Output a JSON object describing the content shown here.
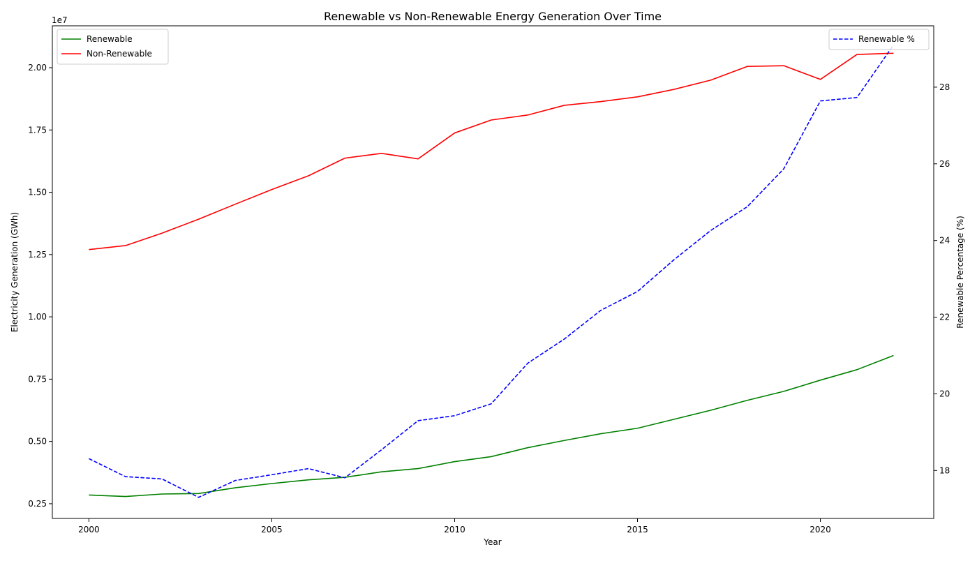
{
  "chart_data": {
    "type": "line",
    "title": "Renewable vs Non-Renewable Energy Generation Over Time",
    "xlabel": "Year",
    "ylabel_left": "Electricity Generation (GWh)",
    "ylabel_right": "Renewable Percentage (%)",
    "left_axis_offset_label": "1e7",
    "xlim": [
      1999,
      2023.1
    ],
    "ylim_left": [
      1910000,
      21680000
    ],
    "ylim_right": [
      16.75,
      29.6
    ],
    "x_ticks": [
      2000,
      2005,
      2010,
      2015,
      2020
    ],
    "x_tick_labels": [
      "2000",
      "2005",
      "2010",
      "2015",
      "2020"
    ],
    "left_ticks": [
      2500000,
      5000000,
      7500000,
      10000000,
      12500000,
      15000000,
      17500000,
      20000000
    ],
    "left_tick_labels": [
      "0.25",
      "0.50",
      "0.75",
      "1.00",
      "1.25",
      "1.50",
      "1.75",
      "2.00"
    ],
    "right_ticks": [
      18,
      20,
      22,
      24,
      26,
      28
    ],
    "right_tick_labels": [
      "18",
      "20",
      "22",
      "24",
      "26",
      "28"
    ],
    "x": [
      2000,
      2001,
      2002,
      2003,
      2004,
      2005,
      2006,
      2007,
      2008,
      2009,
      2010,
      2011,
      2012,
      2013,
      2014,
      2015,
      2016,
      2017,
      2018,
      2019,
      2020,
      2021,
      2022
    ],
    "series": [
      {
        "name": "Renewable",
        "axis": "left",
        "color": "#008000",
        "dash": "solid",
        "values": [
          2850000,
          2790000,
          2890000,
          2910000,
          3140000,
          3310000,
          3460000,
          3560000,
          3780000,
          3910000,
          4190000,
          4390000,
          4750000,
          5040000,
          5310000,
          5530000,
          5890000,
          6250000,
          6650000,
          7010000,
          7460000,
          7880000,
          8450000
        ]
      },
      {
        "name": "Non-Renewable",
        "axis": "left",
        "color": "#ff0000",
        "dash": "solid",
        "values": [
          12700000,
          12860000,
          13360000,
          13920000,
          14520000,
          15110000,
          15660000,
          16370000,
          16560000,
          16340000,
          17380000,
          17900000,
          18100000,
          18490000,
          18640000,
          18830000,
          19130000,
          19500000,
          20050000,
          20080000,
          19530000,
          20530000,
          20580000
        ]
      },
      {
        "name": "Renewable %",
        "axis": "right",
        "color": "#0000ff",
        "dash": "dashed",
        "values": [
          18.31,
          17.84,
          17.78,
          17.3,
          17.74,
          17.89,
          18.05,
          17.81,
          18.54,
          19.3,
          19.43,
          19.74,
          20.8,
          21.43,
          22.18,
          22.67,
          23.5,
          24.26,
          24.88,
          25.87,
          27.64,
          27.73,
          29.1
        ]
      }
    ],
    "legend_left_placement": "upper-left",
    "legend_right_placement": "upper-right",
    "grid": false
  }
}
